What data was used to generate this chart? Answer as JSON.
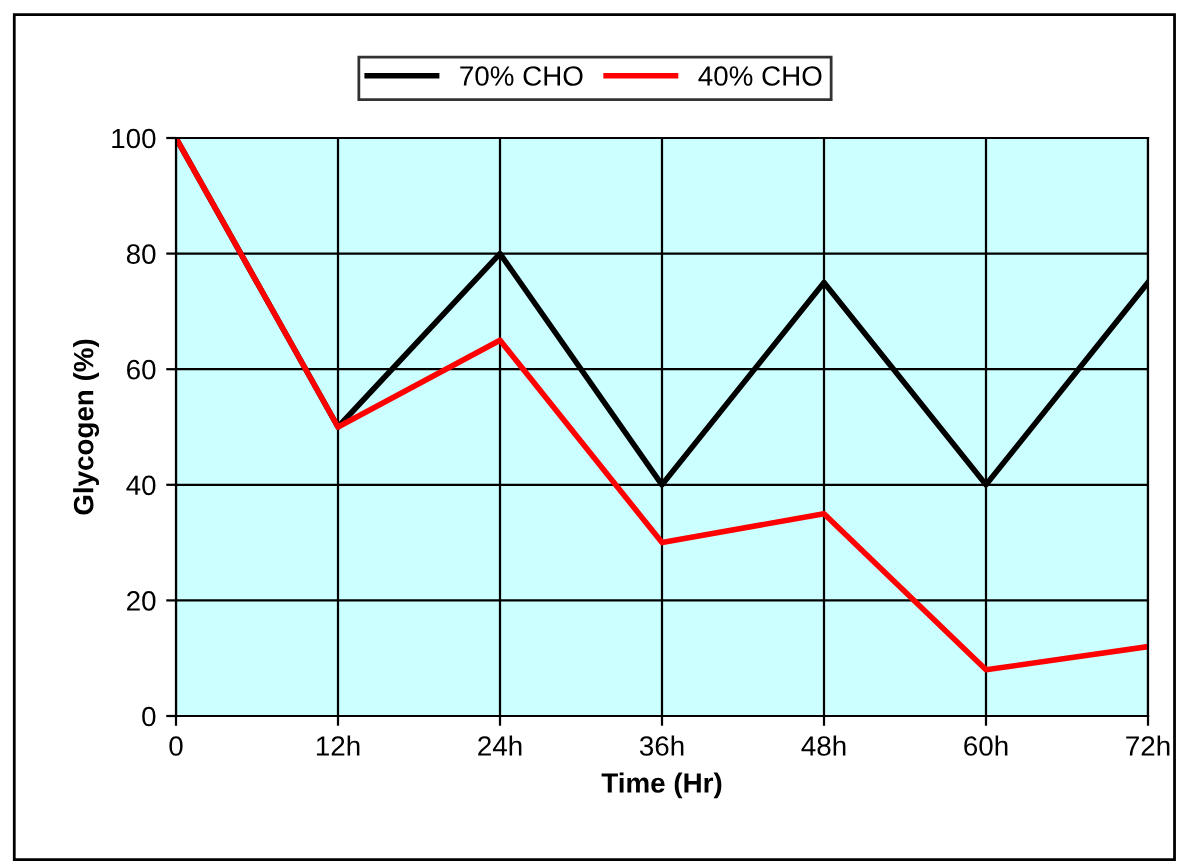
{
  "chart_data": {
    "type": "line",
    "xlabel": "Time (Hr)",
    "ylabel": "Glycogen (%)",
    "categories": [
      "0",
      "12h",
      "24h",
      "36h",
      "48h",
      "60h",
      "72h"
    ],
    "series": [
      {
        "name": "70% CHO",
        "color": "#000000",
        "values": [
          100,
          50,
          80,
          40,
          75,
          40,
          75
        ]
      },
      {
        "name": "40% CHO",
        "color": "#ff0000",
        "values": [
          100,
          50,
          65,
          30,
          35,
          8,
          12
        ]
      }
    ],
    "ylim": [
      0,
      100
    ],
    "yticks": [
      0,
      20,
      40,
      60,
      80,
      100
    ],
    "grid": true,
    "legend": "top",
    "line_style": "solid",
    "marker": "none"
  }
}
